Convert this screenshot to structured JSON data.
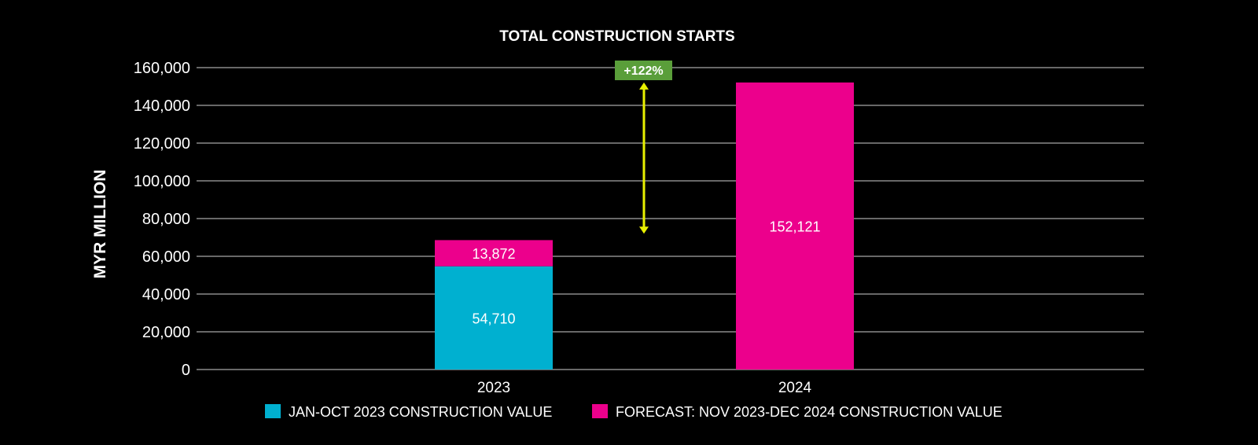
{
  "chart_data": {
    "type": "bar",
    "stacked": true,
    "title": "TOTAL CONSTRUCTION STARTS",
    "xlabel": "",
    "ylabel": "MYR MILLION",
    "ylim": [
      0,
      160000
    ],
    "yticks": [
      0,
      20000,
      40000,
      60000,
      80000,
      100000,
      120000,
      140000,
      160000
    ],
    "ytick_labels": [
      "0",
      "20,000",
      "40,000",
      "60,000",
      "80,000",
      "100,000",
      "120,000",
      "140,000",
      "160,000"
    ],
    "categories": [
      "2023",
      "2024"
    ],
    "grid": true,
    "legend_position": "bottom",
    "series": [
      {
        "name": "JAN-OCT 2023 CONSTRUCTION VALUE",
        "color": "#00b0d0",
        "values": [
          54710,
          0
        ],
        "labels": [
          "54,710",
          ""
        ]
      },
      {
        "name": "FORECAST: NOV 2023-DEC 2024 CONSTRUCTION VALUE",
        "color": "#ec008c",
        "values": [
          13872,
          152121
        ],
        "labels": [
          "13,872",
          "152,121"
        ]
      }
    ],
    "annotation": {
      "text": "+122%",
      "color": "#5a9e3a",
      "arrow_color": "#e8f000",
      "from_value": 72000,
      "to_value": 152121
    }
  }
}
